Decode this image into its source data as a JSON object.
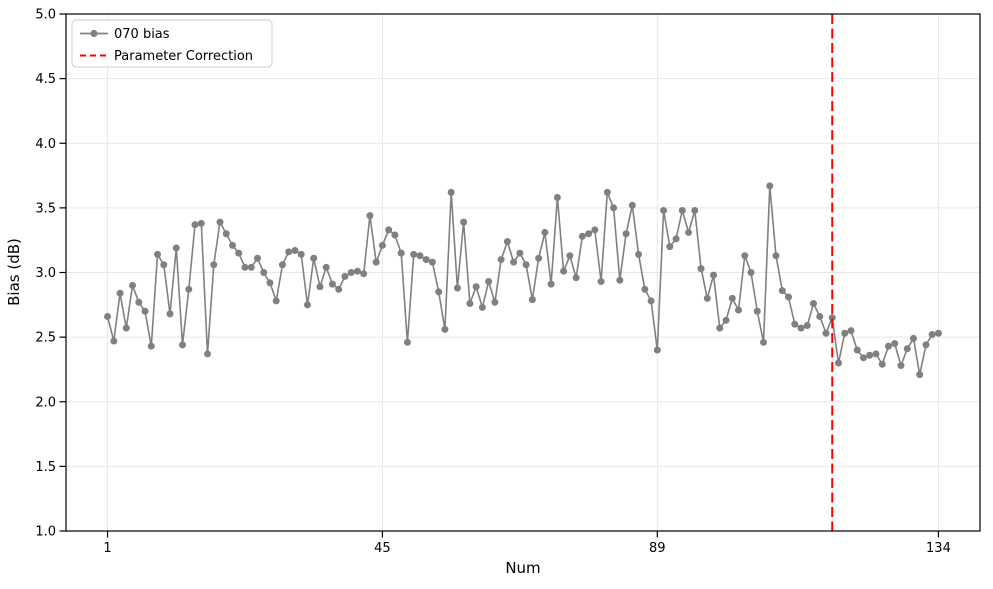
{
  "chart_data": {
    "type": "line",
    "title": "",
    "xlabel": "Num",
    "ylabel": "Bias (dB)",
    "xlim": [
      -5.65,
      140.65
    ],
    "ylim": [
      1.0,
      5.0
    ],
    "xticks": [
      1,
      45,
      89,
      134
    ],
    "xtick_labels": [
      "1",
      "45",
      "89",
      "134"
    ],
    "yticks": [
      5.0,
      4.5,
      4.0,
      3.5,
      3.0,
      2.5,
      2.0,
      1.5,
      1.0
    ],
    "ytick_labels": [
      "5.0",
      "4.5",
      "4.0",
      "3.5",
      "3.0",
      "2.5",
      "2.0",
      "1.5",
      "1.0"
    ],
    "grid": true,
    "grid_color": "#e8e8e8",
    "spine_color": "#000000",
    "background": "#ffffff",
    "legend_position": "upper left",
    "series": [
      {
        "name": "070 bias",
        "color": "#808080",
        "marker": "circle",
        "x_start": 1,
        "x_step": 1,
        "values": [
          2.66,
          2.47,
          2.84,
          2.57,
          2.9,
          2.77,
          2.7,
          2.43,
          3.14,
          3.06,
          2.68,
          3.19,
          2.44,
          2.87,
          3.37,
          3.38,
          2.37,
          3.06,
          3.39,
          3.3,
          3.21,
          3.15,
          3.04,
          3.04,
          3.11,
          3.0,
          2.92,
          2.78,
          3.06,
          3.16,
          3.17,
          3.14,
          2.75,
          3.11,
          2.89,
          3.04,
          2.91,
          2.87,
          2.97,
          3.0,
          3.01,
          2.99,
          3.44,
          3.08,
          3.21,
          3.33,
          3.29,
          3.15,
          2.46,
          3.14,
          3.13,
          3.1,
          3.08,
          2.85,
          2.56,
          3.62,
          2.88,
          3.39,
          2.76,
          2.89,
          2.73,
          2.93,
          2.77,
          3.1,
          3.24,
          3.08,
          3.15,
          3.06,
          2.79,
          3.11,
          3.31,
          2.91,
          3.58,
          3.01,
          3.13,
          2.96,
          3.28,
          3.3,
          3.33,
          2.93,
          3.62,
          3.5,
          2.94,
          3.3,
          3.52,
          3.14,
          2.87,
          2.78,
          2.4,
          3.48,
          3.2,
          3.26,
          3.48,
          3.31,
          3.48,
          3.03,
          2.8,
          2.98,
          2.57,
          2.63,
          2.8,
          2.71,
          3.13,
          3.0,
          2.7,
          2.46,
          3.67,
          3.13,
          2.86,
          2.81,
          2.6,
          2.57,
          2.59,
          2.76,
          2.66,
          2.53,
          2.65,
          2.3,
          2.53,
          2.55,
          2.4,
          2.34,
          2.36,
          2.37,
          2.29,
          2.43,
          2.45,
          2.28,
          2.41,
          2.49,
          2.21,
          2.44,
          2.52,
          2.53
        ]
      }
    ],
    "vline": {
      "label": "Parameter Correction",
      "x": 117,
      "color": "#ff0000",
      "style": "dashed",
      "linewidth": 2
    }
  },
  "legend": {
    "items": [
      {
        "label": "070 bias"
      },
      {
        "label": "Parameter Correction"
      }
    ]
  }
}
